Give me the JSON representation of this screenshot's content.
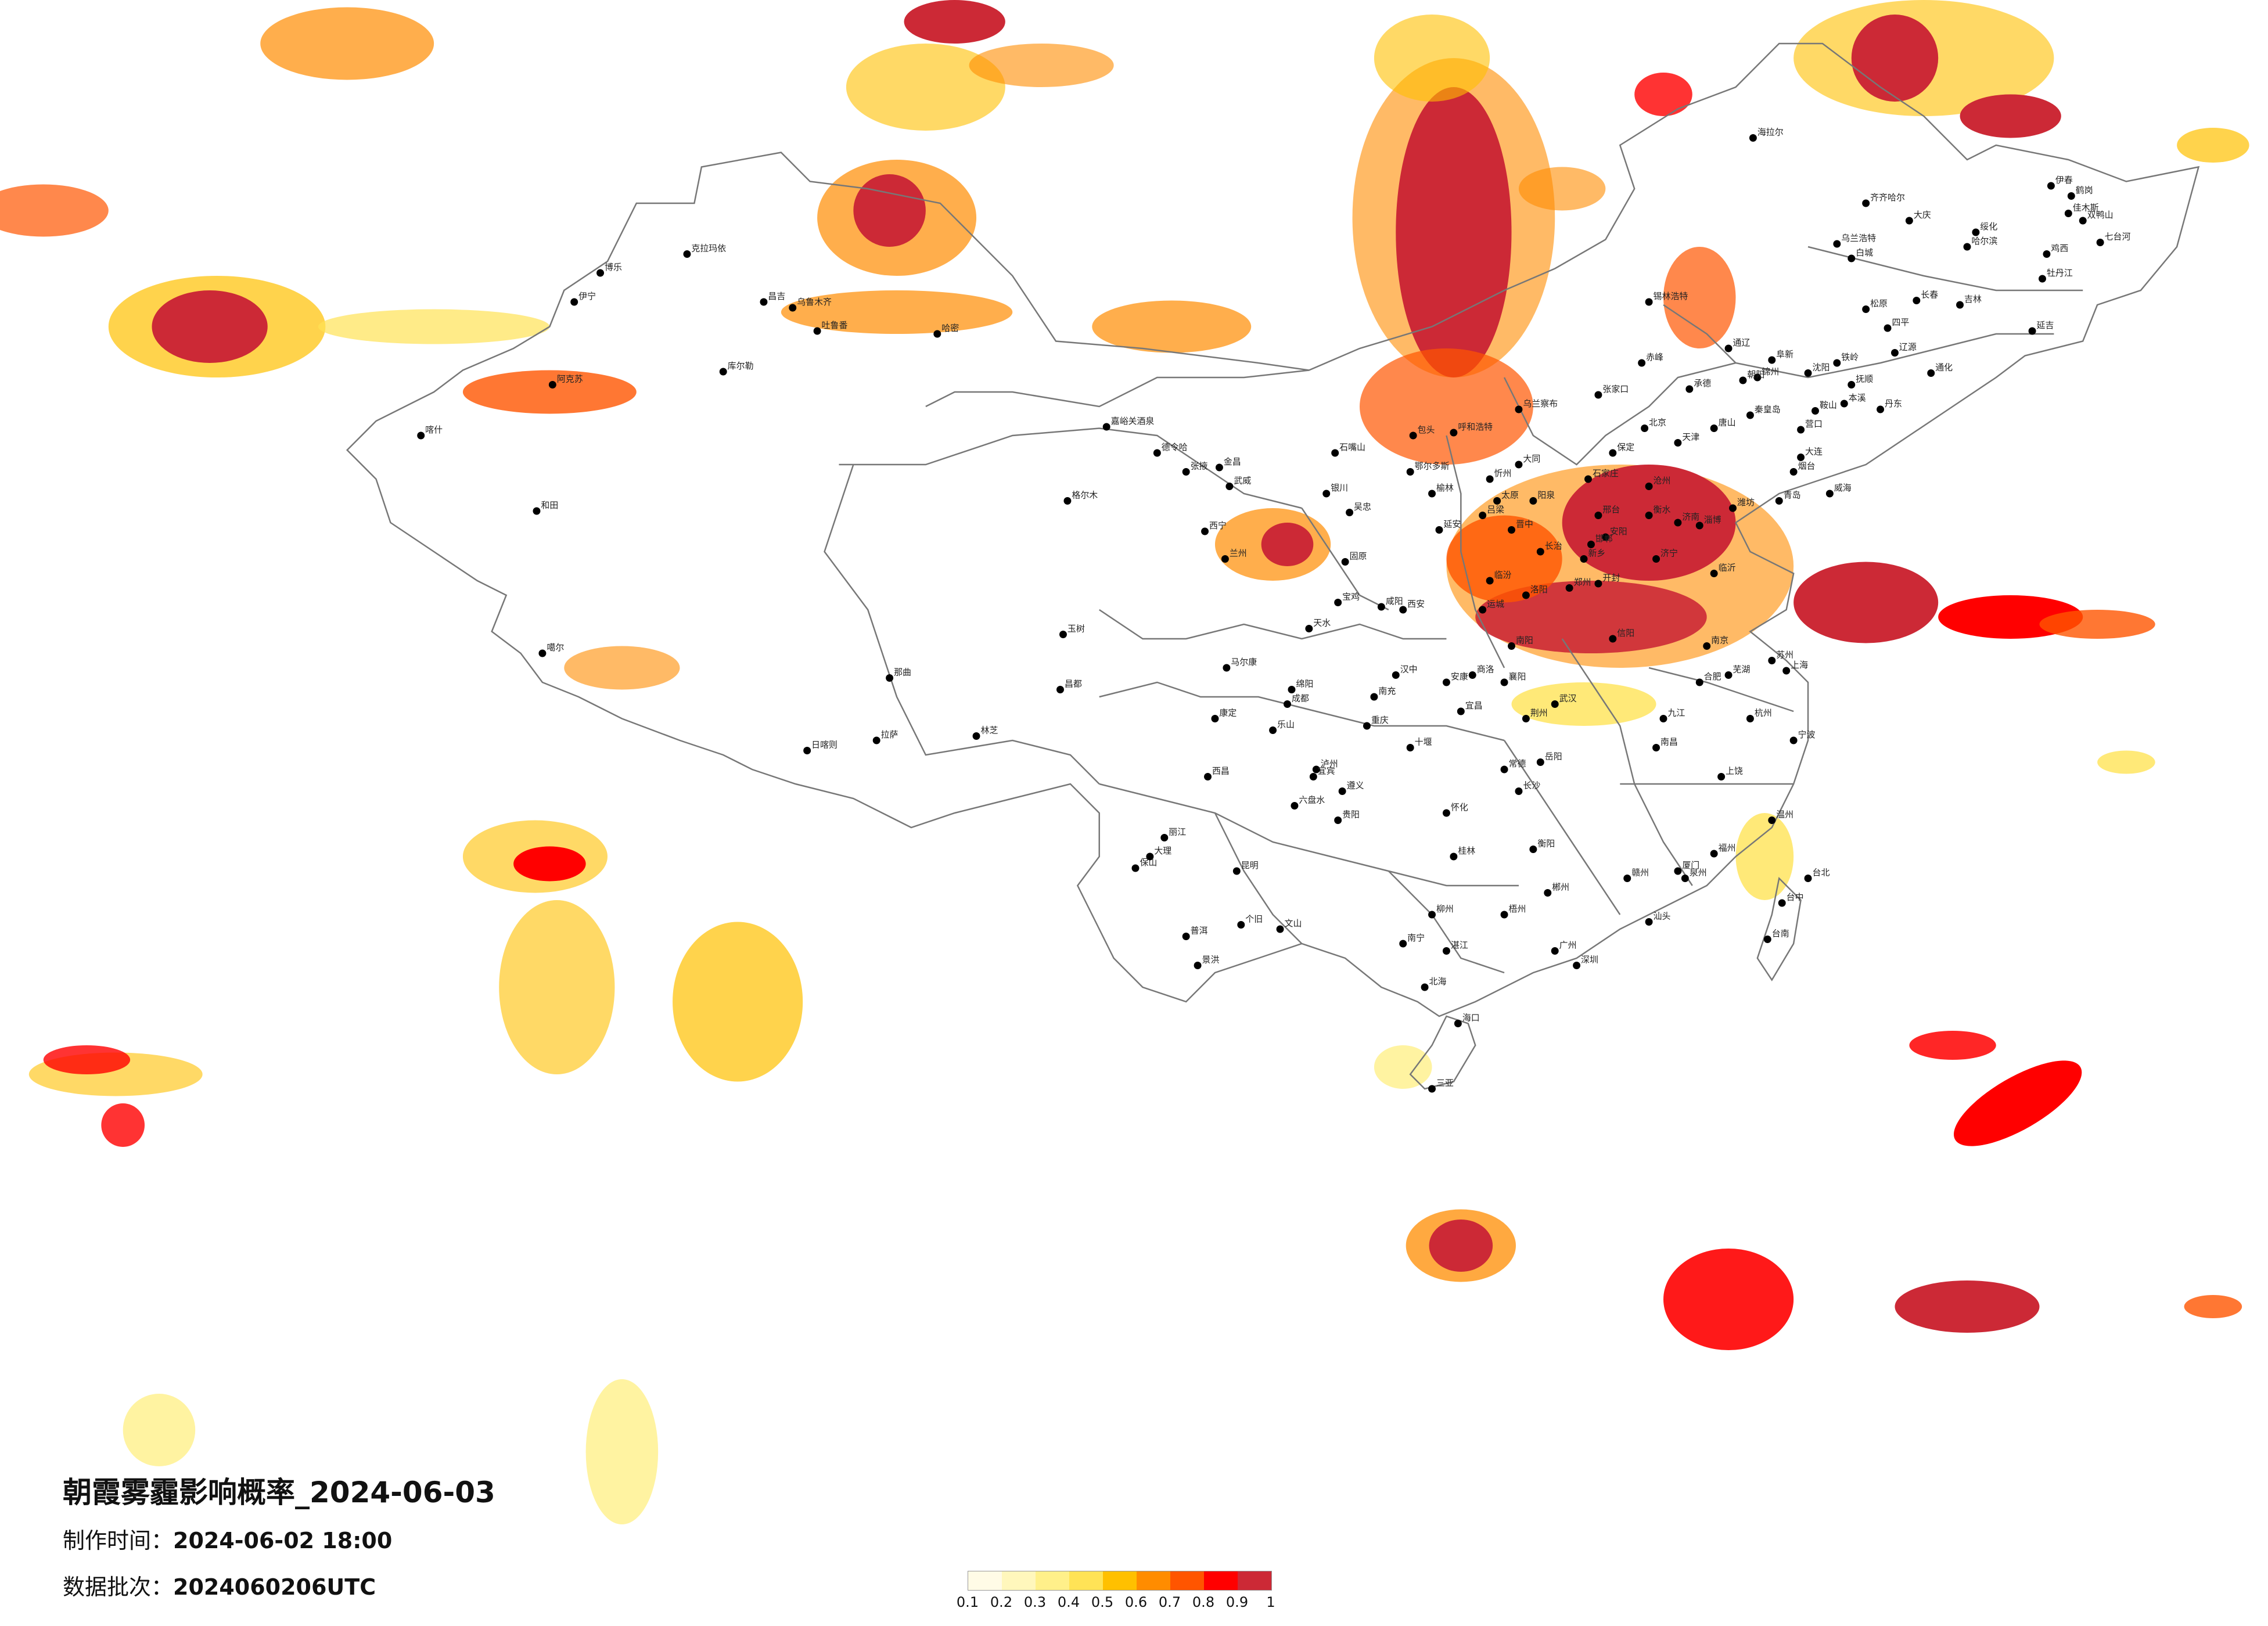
{
  "header": {
    "title": "朝霞雾霾影响概率_2024-06-03",
    "production_label": "制作时间：",
    "production_time": "2024-06-02 18:00",
    "batch_label": "数据批次：",
    "batch": "2024060206UTC"
  },
  "legend": {
    "colors": [
      "#fffbe6",
      "#fff7bc",
      "#fff08a",
      "#ffe356",
      "#ffc000",
      "#ff8c00",
      "#ff5500",
      "#ff0000",
      "#cc2936"
    ],
    "labels": [
      "0.1",
      "0.2",
      "0.3",
      "0.4",
      "0.5",
      "0.6",
      "0.7",
      "0.8",
      "0.9",
      "1"
    ]
  },
  "colors": {
    "boundary": "#777777",
    "city_dot": "#000000"
  },
  "cities": [
    {
      "name": "克拉玛依"
    },
    {
      "name": "博乐"
    },
    {
      "name": "伊宁"
    },
    {
      "name": "昌吉"
    },
    {
      "name": "乌鲁木齐"
    },
    {
      "name": "吐鲁番"
    },
    {
      "name": "哈密"
    },
    {
      "name": "库尔勒"
    },
    {
      "name": "阿克苏"
    },
    {
      "name": "喀什"
    },
    {
      "name": "和田"
    },
    {
      "name": "嘉峪关酒泉"
    },
    {
      "name": "格尔木"
    },
    {
      "name": "德令哈"
    },
    {
      "name": "西宁"
    },
    {
      "name": "金昌"
    },
    {
      "name": "武威"
    },
    {
      "name": "兰州"
    },
    {
      "name": "天水"
    },
    {
      "name": "张掖"
    },
    {
      "name": "银川"
    },
    {
      "name": "石嘴山"
    },
    {
      "name": "吴忠"
    },
    {
      "name": "固原"
    },
    {
      "name": "呼和浩特"
    },
    {
      "name": "包头"
    },
    {
      "name": "鄂尔多斯"
    },
    {
      "name": "乌兰察布"
    },
    {
      "name": "锡林浩特"
    },
    {
      "name": "海拉尔"
    },
    {
      "name": "齐齐哈尔"
    },
    {
      "name": "大庆"
    },
    {
      "name": "哈尔滨"
    },
    {
      "name": "伊春"
    },
    {
      "name": "佳木斯"
    },
    {
      "name": "鹤岗"
    },
    {
      "name": "双鸭山"
    },
    {
      "name": "七台河"
    },
    {
      "name": "鸡西"
    },
    {
      "name": "牡丹江"
    },
    {
      "name": "绥化"
    },
    {
      "name": "乌兰浩特"
    },
    {
      "name": "白城"
    },
    {
      "name": "松原"
    },
    {
      "name": "长春"
    },
    {
      "name": "吉林"
    },
    {
      "name": "四平"
    },
    {
      "name": "辽源"
    },
    {
      "name": "通化"
    },
    {
      "name": "延吉"
    },
    {
      "name": "沈阳"
    },
    {
      "name": "铁岭"
    },
    {
      "name": "抚顺"
    },
    {
      "name": "本溪"
    },
    {
      "name": "丹东"
    },
    {
      "name": "鞍山"
    },
    {
      "name": "营口"
    },
    {
      "name": "锦州"
    },
    {
      "name": "阜新"
    },
    {
      "name": "朝阳"
    },
    {
      "name": "大连"
    },
    {
      "name": "赤峰"
    },
    {
      "name": "通辽"
    },
    {
      "name": "北京"
    },
    {
      "name": "天津"
    },
    {
      "name": "唐山"
    },
    {
      "name": "秦皇岛"
    },
    {
      "name": "承德"
    },
    {
      "name": "张家口"
    },
    {
      "name": "保定"
    },
    {
      "name": "石家庄"
    },
    {
      "name": "沧州"
    },
    {
      "name": "衡水"
    },
    {
      "name": "邢台"
    },
    {
      "name": "邯郸"
    },
    {
      "name": "太原"
    },
    {
      "name": "大同"
    },
    {
      "name": "忻州"
    },
    {
      "name": "阳泉"
    },
    {
      "name": "晋中"
    },
    {
      "name": "长治"
    },
    {
      "name": "临汾"
    },
    {
      "name": "运城"
    },
    {
      "name": "吕梁"
    },
    {
      "name": "济南"
    },
    {
      "name": "青岛"
    },
    {
      "name": "烟台"
    },
    {
      "name": "威海"
    },
    {
      "name": "潍坊"
    },
    {
      "name": "淄博"
    },
    {
      "name": "临沂"
    },
    {
      "name": "济宁"
    },
    {
      "name": "郑州"
    },
    {
      "name": "开封"
    },
    {
      "name": "洛阳"
    },
    {
      "name": "新乡"
    },
    {
      "name": "安阳"
    },
    {
      "name": "南阳"
    },
    {
      "name": "信阳"
    },
    {
      "name": "西安"
    },
    {
      "name": "咸阳"
    },
    {
      "name": "宝鸡"
    },
    {
      "name": "延安"
    },
    {
      "name": "榆林"
    },
    {
      "name": "汉中"
    },
    {
      "name": "安康"
    },
    {
      "name": "商洛"
    },
    {
      "name": "武汉"
    },
    {
      "name": "襄阳"
    },
    {
      "name": "宜昌"
    },
    {
      "name": "荆州"
    },
    {
      "name": "十堰"
    },
    {
      "name": "长沙"
    },
    {
      "name": "岳阳"
    },
    {
      "name": "常德"
    },
    {
      "name": "怀化"
    },
    {
      "name": "衡阳"
    },
    {
      "name": "郴州"
    },
    {
      "name": "南昌"
    },
    {
      "name": "九江"
    },
    {
      "name": "赣州"
    },
    {
      "name": "上饶"
    },
    {
      "name": "合肥"
    },
    {
      "name": "芜湖"
    },
    {
      "name": "南京"
    },
    {
      "name": "苏州"
    },
    {
      "name": "上海"
    },
    {
      "name": "杭州"
    },
    {
      "name": "宁波"
    },
    {
      "name": "温州"
    },
    {
      "name": "福州"
    },
    {
      "name": "厦门"
    },
    {
      "name": "泉州"
    },
    {
      "name": "台北"
    },
    {
      "name": "台中"
    },
    {
      "name": "台南"
    },
    {
      "name": "广州"
    },
    {
      "name": "深圳"
    },
    {
      "name": "汕头"
    },
    {
      "name": "湛江"
    },
    {
      "name": "南宁"
    },
    {
      "name": "柳州"
    },
    {
      "name": "桂林"
    },
    {
      "name": "梧州"
    },
    {
      "name": "北海"
    },
    {
      "name": "海口"
    },
    {
      "name": "三亚"
    },
    {
      "name": "贵阳"
    },
    {
      "name": "遵义"
    },
    {
      "name": "六盘水"
    },
    {
      "name": "昆明"
    },
    {
      "name": "大理"
    },
    {
      "name": "丽江"
    },
    {
      "name": "保山"
    },
    {
      "name": "普洱"
    },
    {
      "name": "景洪"
    },
    {
      "name": "文山"
    },
    {
      "name": "个旧"
    },
    {
      "name": "成都"
    },
    {
      "name": "绵阳"
    },
    {
      "name": "南充"
    },
    {
      "name": "乐山"
    },
    {
      "name": "宜宾"
    },
    {
      "name": "泸州"
    },
    {
      "name": "西昌"
    },
    {
      "name": "康定"
    },
    {
      "name": "马尔康"
    },
    {
      "name": "重庆"
    },
    {
      "name": "拉萨"
    },
    {
      "name": "日喀则"
    },
    {
      "name": "林芝"
    },
    {
      "name": "昌都"
    },
    {
      "name": "那曲"
    },
    {
      "name": "噶尔"
    },
    {
      "name": "玉树"
    }
  ]
}
